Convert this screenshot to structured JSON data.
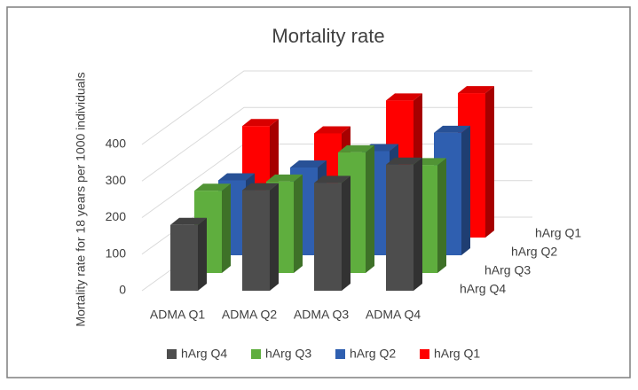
{
  "chart_data": {
    "type": "bar3d",
    "title": "Mortality rate",
    "y_label": "Mortality rate for 18 years per 1000 individuals",
    "categories": [
      "ADMA Q1",
      "ADMA Q2",
      "ADMA Q3",
      "ADMA Q4"
    ],
    "series": [
      {
        "name": "hArg Q4",
        "color": "#4d4d4d",
        "values": [
          180,
          275,
          295,
          345
        ]
      },
      {
        "name": "hArg Q3",
        "color": "#5fae3e",
        "values": [
          225,
          250,
          330,
          295
        ]
      },
      {
        "name": "hArg Q2",
        "color": "#2f5fb0",
        "values": [
          205,
          240,
          285,
          335
        ]
      },
      {
        "name": "hArg Q1",
        "color": "#ff0000",
        "values": [
          305,
          285,
          375,
          395
        ]
      }
    ],
    "ylim": [
      0,
      400
    ],
    "yticks": [
      0,
      100,
      200,
      300,
      400
    ],
    "grid": true,
    "legend": "bottom"
  }
}
